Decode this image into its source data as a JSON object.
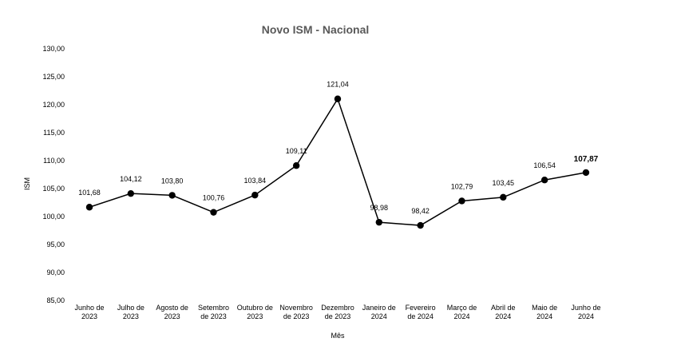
{
  "chart_data": {
    "type": "line",
    "title": "Novo ISM - Nacional",
    "xlabel": "Mês",
    "ylabel": "ISM",
    "ylim": [
      85,
      130
    ],
    "y_ticks": [
      "85,00",
      "90,00",
      "95,00",
      "100,00",
      "105,00",
      "110,00",
      "115,00",
      "120,00",
      "125,00",
      "130,00"
    ],
    "categories": [
      [
        "Junho de",
        "2023"
      ],
      [
        "Julho de",
        "2023"
      ],
      [
        "Agosto de",
        "2023"
      ],
      [
        "Setembro",
        "de 2023"
      ],
      [
        "Outubro de",
        "2023"
      ],
      [
        "Novembro",
        "de 2023"
      ],
      [
        "Dezembro",
        "de 2023"
      ],
      [
        "Janeiro de",
        "2024"
      ],
      [
        "Fevereiro",
        "de 2024"
      ],
      [
        "Março de",
        "2024"
      ],
      [
        "Abril de",
        "2024"
      ],
      [
        "Maio de",
        "2024"
      ],
      [
        "Junho de",
        "2024"
      ]
    ],
    "values": [
      101.68,
      104.12,
      103.8,
      100.76,
      103.84,
      109.11,
      121.04,
      98.98,
      98.42,
      102.79,
      103.45,
      106.54,
      107.87
    ],
    "data_labels": [
      "101,68",
      "104,12",
      "103,80",
      "100,76",
      "103,84",
      "109,11",
      "121,04",
      "98,98",
      "98,42",
      "102,79",
      "103,45",
      "106,54",
      "107,87"
    ],
    "highlight_last_label": true,
    "grid": false,
    "legend": "none",
    "colors": {
      "line": "#000000",
      "marker": "#000000",
      "title": "#595959"
    }
  }
}
